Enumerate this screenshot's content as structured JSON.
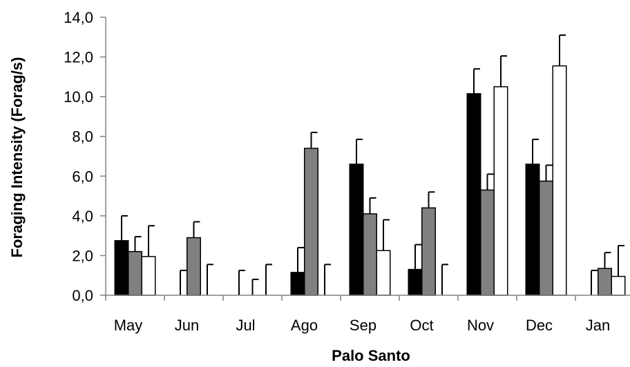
{
  "chart_data": {
    "type": "bar",
    "title": "",
    "xlabel": "Palo Santo",
    "ylabel": "Foraging Intensity (Forag/s)",
    "ylim": [
      0,
      14
    ],
    "yticks": [
      "0,0",
      "2,0",
      "4,0",
      "6,0",
      "8,0",
      "10,0",
      "12,0",
      "14,0"
    ],
    "ytick_values": [
      0,
      2,
      4,
      6,
      8,
      10,
      12,
      14
    ],
    "grid": false,
    "legend": "none",
    "categories": [
      "May",
      "Jun",
      "Jul",
      "Ago",
      "Sep",
      "Oct",
      "Nov",
      "Dec",
      "Jan"
    ],
    "series": [
      {
        "color": "#000000",
        "values": [
          2.75,
          0,
          0,
          1.15,
          6.6,
          1.3,
          10.15,
          6.6,
          0
        ],
        "errors": [
          1.25,
          1.25,
          1.25,
          1.25,
          1.25,
          1.25,
          1.25,
          1.25,
          1.25
        ]
      },
      {
        "color": "#808080",
        "values": [
          2.2,
          2.9,
          0,
          7.4,
          4.1,
          4.4,
          5.3,
          5.75,
          1.35
        ],
        "errors": [
          0.75,
          0.8,
          0.8,
          0.8,
          0.8,
          0.8,
          0.8,
          0.8,
          0.8
        ]
      },
      {
        "color": "#ffffff",
        "values": [
          1.95,
          0,
          0,
          0,
          2.25,
          0,
          10.5,
          11.55,
          0.95
        ],
        "errors": [
          1.55,
          1.55,
          1.55,
          1.55,
          1.55,
          1.55,
          1.55,
          1.55,
          1.55
        ]
      }
    ]
  }
}
